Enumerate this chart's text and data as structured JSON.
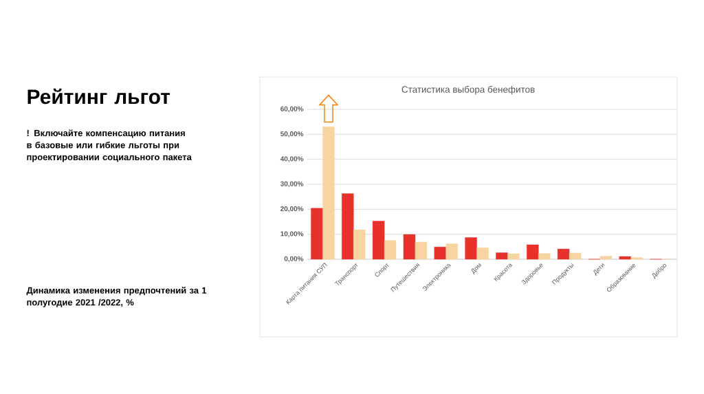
{
  "chart_data": {
    "type": "bar",
    "title": "Статистика выбора бенефитов",
    "categories": [
      "Карта питания СУП",
      "Транспорт",
      "Спорт",
      "Путешествия",
      "Электроника",
      "Дом",
      "Красота",
      "Здоровье",
      "Продукты",
      "Дети",
      "Образование",
      "Добро"
    ],
    "series": [
      {
        "color": "#e8312a",
        "values": [
          20.4,
          26.3,
          15.3,
          9.9,
          4.9,
          8.7,
          2.6,
          5.8,
          4.1,
          0,
          1.1,
          0
        ]
      },
      {
        "color": "#f8d4a0",
        "values": [
          53.0,
          11.8,
          7.5,
          6.9,
          6.2,
          4.6,
          2.2,
          2.3,
          2.5,
          1.2,
          0.7,
          0
        ]
      }
    ],
    "ylim": [
      0,
      60
    ],
    "yticks": [
      {
        "value": 0,
        "label": "0,00%"
      },
      {
        "value": 10,
        "label": "10,00%"
      },
      {
        "value": 20,
        "label": "20,00%"
      },
      {
        "value": 30,
        "label": "30,00%"
      },
      {
        "value": 40,
        "label": "40,00%"
      },
      {
        "value": 50,
        "label": "50,00%"
      },
      {
        "value": 60,
        "label": "60,00%"
      }
    ],
    "grid": "y",
    "annotations": [
      "Рейтинг льгот",
      "! Включайте компенсацию питания в базовые или гибкие льготы при проектировании социального пакета",
      "Динамика изменения предпочтений за 1 полугодие 2021 /2022, %"
    ]
  }
}
